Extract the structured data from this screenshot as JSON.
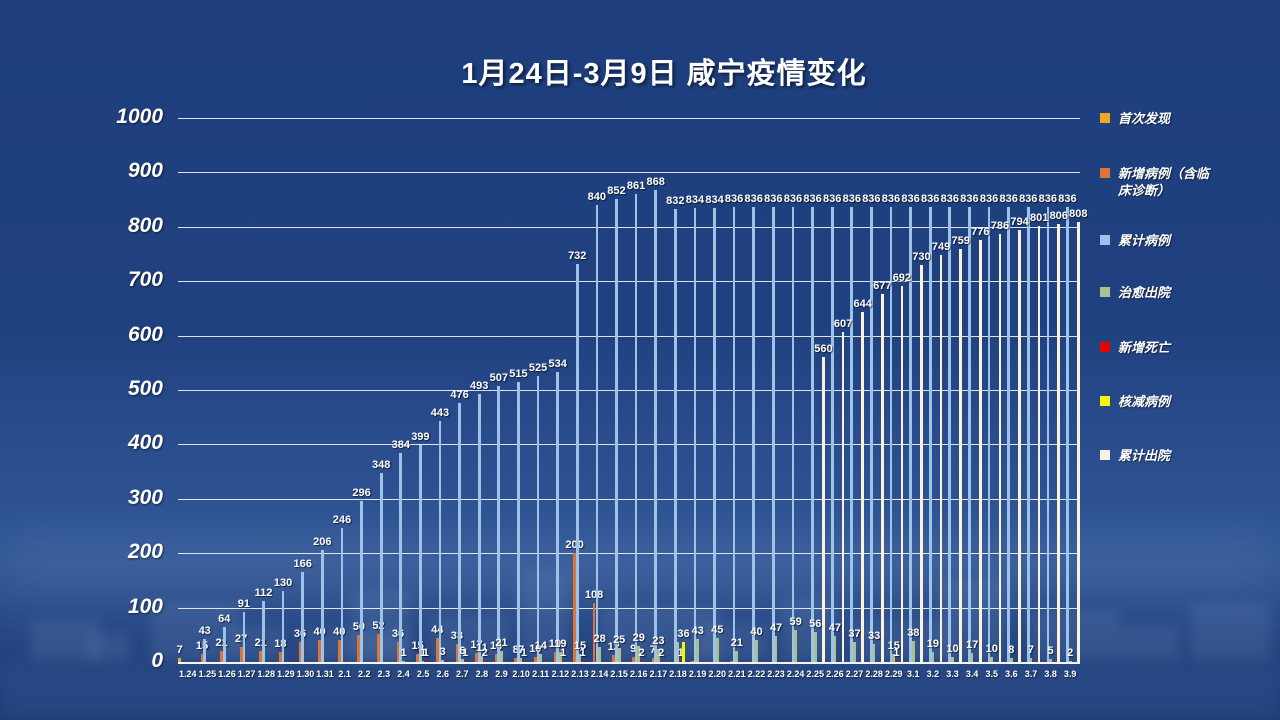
{
  "title": "1月24日-3月9日 咸宁疫情变化",
  "colors": {
    "first_found": "#F2A625",
    "new_cases": "#DC7538",
    "cumulative_cases": "#9DC3E6",
    "cured": "#A9C08F",
    "new_deaths": "#E10600",
    "reduced": "#F7F500",
    "cumulative_discharged": "#FBF2DC",
    "grid": "rgba(255,255,255,0.85)",
    "text": "#FFFFFF"
  },
  "y_axis": {
    "min": 0,
    "max": 1000,
    "step": 100,
    "ticks": [
      0,
      100,
      200,
      300,
      400,
      500,
      600,
      700,
      800,
      900,
      1000
    ]
  },
  "legend": {
    "position": "right",
    "items": [
      {
        "label": "首次发现",
        "color_key": "first_found"
      },
      {
        "label": "新增病例（含临床诊断）",
        "color_key": "new_cases"
      },
      {
        "label": "累计病例",
        "color_key": "cumulative_cases"
      },
      {
        "label": "治愈出院",
        "color_key": "cured"
      },
      {
        "label": "新增死亡",
        "color_key": "new_deaths"
      },
      {
        "label": "核减病例",
        "color_key": "reduced"
      },
      {
        "label": "累计出院",
        "color_key": "cumulative_discharged"
      }
    ]
  },
  "chart_data": {
    "type": "bar",
    "title": "1月24日-3月9日 咸宁疫情变化",
    "xlabel": "",
    "ylabel": "",
    "ylim": [
      0,
      1000
    ],
    "grid": true,
    "legend_position": "right",
    "categories": [
      "1.24",
      "1.25",
      "1.26",
      "1.27",
      "1.28",
      "1.29",
      "1.30",
      "1.31",
      "2.1",
      "2.2",
      "2.3",
      "2.4",
      "2.5",
      "2.6",
      "2.7",
      "2.8",
      "2.9",
      "2.10",
      "2.11",
      "2.12",
      "2.13",
      "2.14",
      "2.15",
      "2.16",
      "2.17",
      "2.18",
      "2.19",
      "2.20",
      "2.21",
      "2.22",
      "2.23",
      "2.24",
      "2.25",
      "2.26",
      "2.27",
      "2.28",
      "2.29",
      "3.1",
      "3.2",
      "3.3",
      "3.4",
      "3.5",
      "3.6",
      "3.7",
      "3.8",
      "3.9"
    ],
    "series": [
      {
        "name": "首次发现",
        "color_key": "first_found",
        "values": [
          7,
          0,
          0,
          0,
          0,
          0,
          0,
          0,
          0,
          0,
          0,
          0,
          0,
          0,
          0,
          0,
          0,
          0,
          0,
          0,
          0,
          0,
          0,
          0,
          0,
          0,
          0,
          0,
          0,
          0,
          0,
          0,
          0,
          0,
          0,
          0,
          0,
          0,
          0,
          0,
          0,
          0,
          0,
          0,
          0,
          0
        ]
      },
      {
        "name": "新增病例（含临床诊断）",
        "color_key": "new_cases",
        "values": [
          0,
          15,
          21,
          27,
          21,
          18,
          36,
          40,
          40,
          50,
          52,
          36,
          15,
          44,
          33,
          17,
          14,
          8,
          10,
          19,
          200,
          108,
          12,
          9,
          7,
          0,
          2,
          0,
          2,
          0,
          0,
          0,
          0,
          0,
          0,
          0,
          0,
          0,
          0,
          0,
          0,
          0,
          0,
          0,
          0,
          0
        ]
      },
      {
        "name": "累计病例",
        "color_key": "cumulative_cases",
        "values": [
          0,
          43,
          64,
          91,
          112,
          130,
          166,
          206,
          246,
          296,
          348,
          384,
          399,
          443,
          476,
          493,
          507,
          515,
          525,
          534,
          732,
          840,
          852,
          861,
          868,
          832,
          834,
          834,
          836,
          836,
          836,
          836,
          836,
          836,
          836,
          836,
          836,
          836,
          836,
          836,
          836,
          836,
          836,
          836,
          836,
          836
        ]
      },
      {
        "name": "治愈出院",
        "color_key": "cured",
        "values": [
          0,
          0,
          0,
          0,
          0,
          0,
          0,
          0,
          0,
          0,
          0,
          1,
          1,
          3,
          6,
          11,
          21,
          7,
          14,
          19,
          15,
          28,
          25,
          29,
          23,
          36,
          43,
          45,
          21,
          40,
          47,
          59,
          56,
          47,
          37,
          33,
          15,
          38,
          19,
          10,
          17,
          10,
          8,
          7,
          5,
          2
        ]
      },
      {
        "name": "新增死亡",
        "color_key": "new_deaths",
        "values": [
          0,
          0,
          0,
          0,
          0,
          0,
          0,
          0,
          0,
          0,
          0,
          0,
          1,
          0,
          1,
          2,
          0,
          1,
          0,
          1,
          1,
          0,
          0,
          2,
          2,
          1,
          0,
          0,
          0,
          0,
          0,
          0,
          0,
          0,
          0,
          0,
          1,
          0,
          0,
          0,
          0,
          0,
          0,
          0,
          0,
          0
        ]
      },
      {
        "name": "核减病例",
        "color_key": "reduced",
        "values": [
          0,
          0,
          0,
          0,
          0,
          0,
          0,
          0,
          0,
          0,
          0,
          0,
          0,
          0,
          0,
          0,
          0,
          0,
          0,
          0,
          0,
          0,
          0,
          0,
          0,
          36,
          0,
          0,
          0,
          0,
          0,
          0,
          0,
          0,
          0,
          0,
          0,
          0,
          0,
          0,
          0,
          0,
          0,
          0,
          0,
          0
        ]
      },
      {
        "name": "累计出院",
        "color_key": "cumulative_discharged",
        "values": [
          0,
          0,
          0,
          0,
          0,
          0,
          0,
          0,
          0,
          0,
          0,
          0,
          0,
          0,
          0,
          0,
          0,
          0,
          0,
          0,
          0,
          0,
          0,
          0,
          0,
          0,
          0,
          0,
          0,
          0,
          0,
          0,
          560,
          607,
          644,
          677,
          692,
          730,
          749,
          759,
          776,
          786,
          794,
          801,
          806,
          808
        ]
      }
    ],
    "hide_labels": {
      "1": [
        26,
        28
      ],
      "3": [
        25
      ]
    }
  }
}
